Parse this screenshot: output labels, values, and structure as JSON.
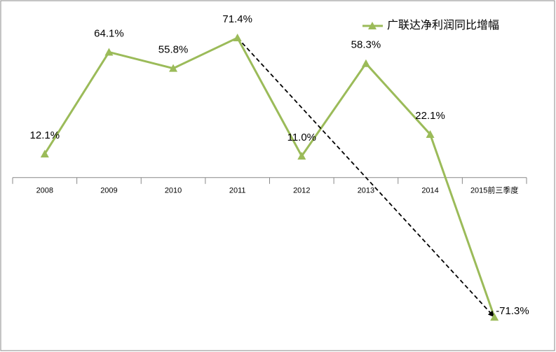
{
  "chart_data": {
    "type": "line",
    "categories": [
      "2008",
      "2009",
      "2010",
      "2011",
      "2012",
      "2013",
      "2014",
      "2015前三季度"
    ],
    "series": [
      {
        "name": "广联达净利润同比增幅",
        "color": "#9bbb59",
        "values": [
          12.1,
          64.1,
          55.8,
          71.4,
          11.0,
          58.3,
          22.1,
          -71.3
        ],
        "value_labels": [
          "12.1%",
          "64.1%",
          "55.8%",
          "71.4%",
          "11.0%",
          "58.3%",
          "22.1%",
          "-71.3%"
        ]
      }
    ],
    "ylim": [
      -88,
      90
    ],
    "legend": "top-right"
  }
}
